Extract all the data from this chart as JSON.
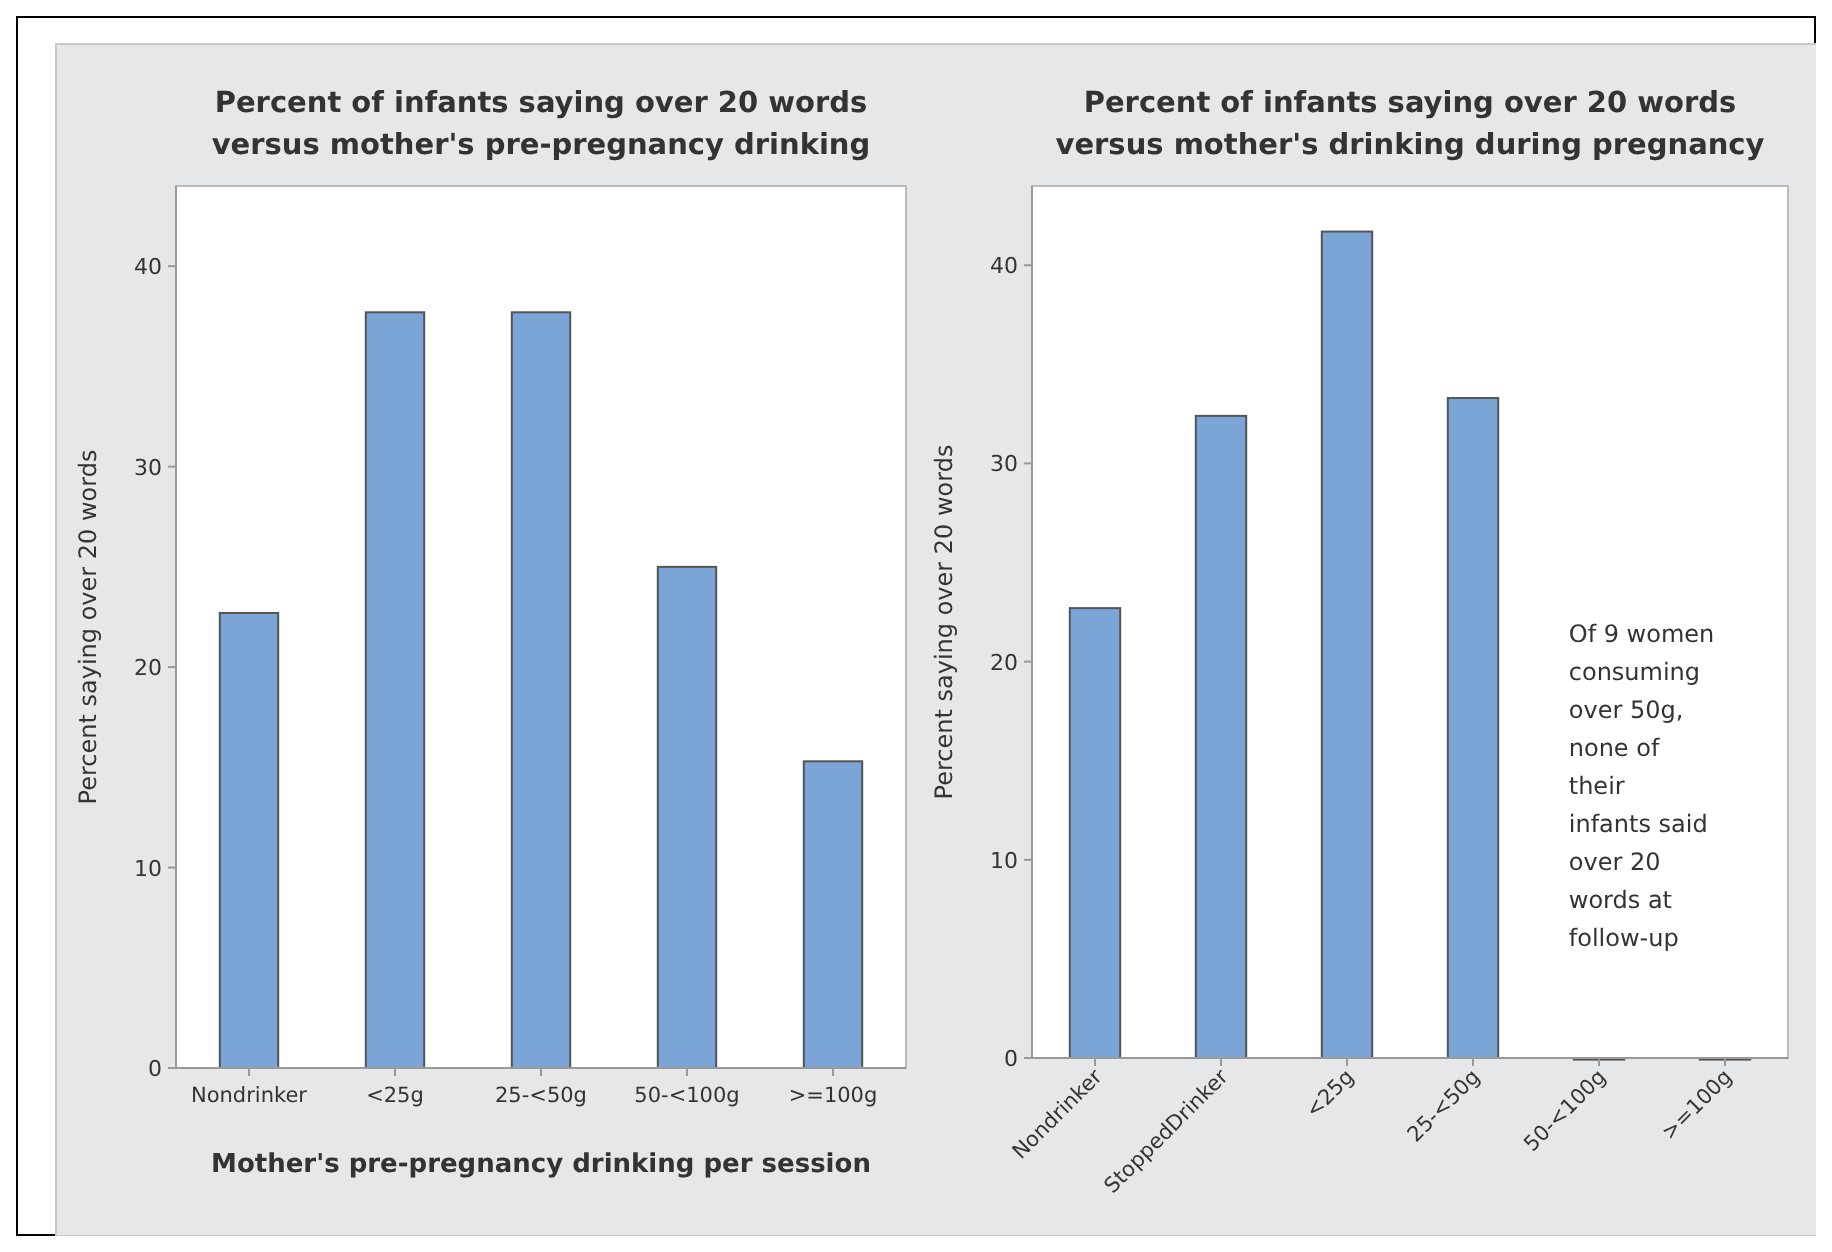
{
  "chart_data": [
    {
      "type": "bar",
      "title": "Percent of infants saying over 20 words\nversus mother's pre-pregnancy drinking",
      "xlabel": "Mother's pre-pregnancy drinking per session",
      "ylabel": "Percent saying over 20 words",
      "categories": [
        "Nondrinker",
        "<25g",
        "25-<50g",
        "50-<100g",
        ">=100g"
      ],
      "values": [
        22.7,
        37.7,
        37.7,
        25.0,
        15.3
      ],
      "color": "#7ba5d7",
      "ylim": [
        0,
        44
      ],
      "yticks": [
        0,
        10,
        20,
        30,
        40
      ],
      "grid": false
    },
    {
      "type": "bar",
      "title": "Percent of infants saying over 20 words\nversus mother's drinking during pregnancy",
      "ylabel": "Percent saying over 20 words",
      "categories": [
        "Nondrinker",
        "StoppedDrinker",
        "<25g",
        "25-<50g",
        "50-<100g",
        ">=100g"
      ],
      "values": [
        22.7,
        32.4,
        41.7,
        33.3,
        0,
        0
      ],
      "color": "#7ba5d7",
      "ylim": [
        0,
        44
      ],
      "yticks": [
        0,
        10,
        20,
        30,
        40
      ],
      "grid": false,
      "annotations": [
        "Of 9 women consuming over 50g, none of their infants said over 20 words at follow-up"
      ]
    }
  ]
}
